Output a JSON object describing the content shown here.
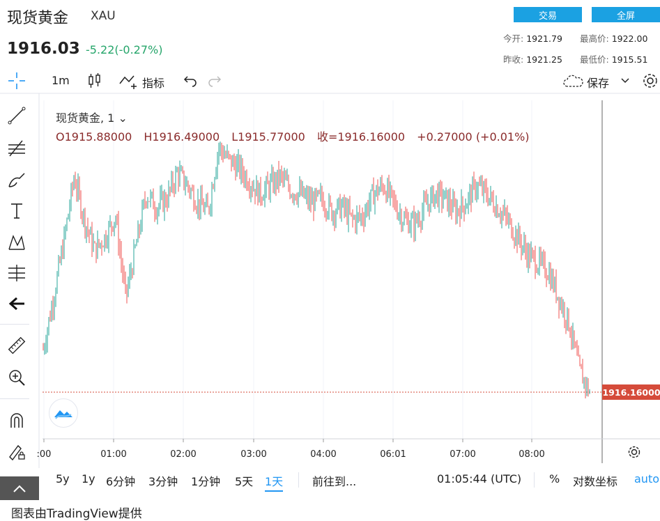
{
  "header": {
    "title": "现货黄金",
    "symbol": "XAU",
    "price": "1916.03",
    "change": "-5.22(-0.27%)",
    "trade_label": "交易",
    "fullscreen_label": "全屏",
    "stats": {
      "open_label": "今开:",
      "open": "1921.79",
      "high_label": "最高价:",
      "high": "1922.00",
      "prevclose_label": "昨收:",
      "prevclose": "1921.25",
      "low_label": "最低价:",
      "low": "1915.51"
    }
  },
  "toolbar": {
    "interval": "1m",
    "indicators_label": "指标",
    "save_label": "保存"
  },
  "legend": {
    "series": "现货黄金, 1",
    "open": "O1915.88000",
    "high": "H1916.49000",
    "low": "L1915.77000",
    "close": "收=1916.16000",
    "delta": "+0.27000 (+0.01%)"
  },
  "last_price_tag": "1916.16000",
  "bottombar": {
    "ranges": [
      "5y",
      "1y",
      "6分钟",
      "3分钟",
      "1分钟",
      "5天",
      "1天"
    ],
    "active_range": "1天",
    "goto_label": "前往到...",
    "clock": "01:05:44 (UTC)",
    "percent_label": "%",
    "log_label": "对数坐标",
    "auto_label": "auto"
  },
  "credit": "图表由TradingView提供",
  "colors": {
    "up": "#26a69a",
    "down": "#ef5350",
    "accent": "#1ba1e2",
    "tag": "#d54b3a"
  },
  "chart_data": {
    "type": "line",
    "title": "",
    "x_tick_labels": [
      ":00",
      "01:00",
      "02:00",
      "03:00",
      "04:00",
      "06:01",
      "07:00",
      "08:00"
    ],
    "x": [
      "00:00",
      "00:10",
      "00:20",
      "00:30",
      "00:40",
      "00:50",
      "01:00",
      "01:10",
      "01:20",
      "01:30",
      "01:40",
      "01:50",
      "02:00",
      "02:10",
      "02:20",
      "02:30",
      "02:40",
      "02:50",
      "03:00",
      "03:10",
      "03:20",
      "03:30",
      "03:40",
      "03:50",
      "04:00",
      "04:10",
      "04:20",
      "04:30",
      "04:40",
      "04:50",
      "05:00",
      "05:10",
      "05:20",
      "05:30",
      "05:40",
      "05:50",
      "06:00",
      "06:10",
      "06:20",
      "06:30",
      "06:40",
      "06:50",
      "07:00",
      "07:10",
      "07:20",
      "07:30",
      "07:40",
      "07:50",
      "08:00",
      "08:10",
      "08:20",
      "08:30",
      "08:40",
      "08:50"
    ],
    "series": [
      {
        "values": [
          1917.0,
          1918.2,
          1919.5,
          1921.0,
          1920.0,
          1919.3,
          1919.6,
          1920.1,
          1918.2,
          1919.4,
          1920.6,
          1920.3,
          1920.5,
          1921.1,
          1920.8,
          1920.4,
          1920.2,
          1921.7,
          1921.4,
          1921.2,
          1920.9,
          1920.6,
          1920.8,
          1921.0,
          1920.7,
          1920.6,
          1920.4,
          1920.5,
          1920.2,
          1920.3,
          1920.0,
          1920.1,
          1920.6,
          1920.8,
          1920.4,
          1920.0,
          1919.9,
          1920.3,
          1920.6,
          1920.5,
          1920.2,
          1920.4,
          1920.8,
          1920.6,
          1920.3,
          1920.0,
          1919.6,
          1919.2,
          1919.0,
          1918.8,
          1918.2,
          1917.6,
          1916.5,
          1916.0
        ]
      }
    ]
  }
}
